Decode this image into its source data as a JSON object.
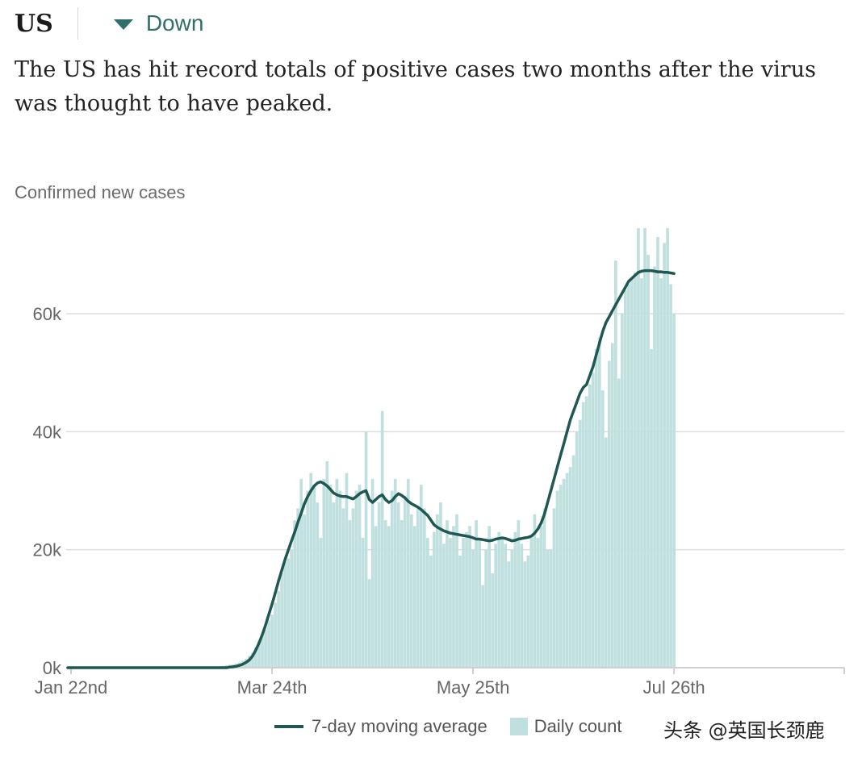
{
  "header": {
    "country": "US",
    "trend_label": "Down",
    "trend_icon": "triangle-down-icon",
    "headline": "The US has hit record totals of positive cases two months after the virus was thought to have peaked."
  },
  "watermark": "头条 @英国长颈鹿",
  "colors": {
    "bars": "#bfe0de",
    "line": "#1f5752",
    "trend": "#2f6f6a",
    "grid": "#dddddd"
  },
  "chart_data": {
    "type": "bar",
    "title": "",
    "ylabel": "Confirmed new cases",
    "xlabel": "",
    "ylim": [
      0,
      75000
    ],
    "x_range": [
      "2020-01-21",
      "2020-09-17"
    ],
    "start_date": "2020-01-21",
    "yticks": [
      {
        "value": 0,
        "label": "0k"
      },
      {
        "value": 20000,
        "label": "20k"
      },
      {
        "value": 40000,
        "label": "40k"
      },
      {
        "value": 60000,
        "label": "60k"
      }
    ],
    "xticks": [
      {
        "day": 1,
        "label": "Jan 22nd"
      },
      {
        "day": 63,
        "label": "Mar 24th"
      },
      {
        "day": 125,
        "label": "May 25th"
      },
      {
        "day": 187,
        "label": "Jul 26th"
      }
    ],
    "legend": [
      "7-day moving average",
      "Daily count"
    ],
    "series": [
      {
        "name": "Daily count",
        "type": "bar",
        "values": [
          1,
          0,
          1,
          0,
          2,
          0,
          1,
          0,
          0,
          1,
          2,
          1,
          0,
          0,
          1,
          0,
          0,
          0,
          0,
          0,
          0,
          0,
          0,
          0,
          0,
          0,
          0,
          0,
          0,
          0,
          18,
          0,
          0,
          10,
          5,
          2,
          10,
          12,
          24,
          15,
          20,
          40,
          40,
          60,
          90,
          120,
          180,
          240,
          300,
          420,
          500,
          550,
          700,
          900,
          1200,
          1500,
          2000,
          2500,
          3500,
          4500,
          5500,
          6500,
          8000,
          9000,
          11000,
          13000,
          16000,
          18000,
          18500,
          20000,
          25000,
          27000,
          32000,
          26000,
          30000,
          33000,
          31000,
          28000,
          22000,
          32000,
          35000,
          31000,
          28000,
          32000,
          30000,
          27000,
          33000,
          25000,
          27000,
          30000,
          31000,
          22000,
          40000,
          15000,
          32000,
          24000,
          28000,
          43500,
          25000,
          24000,
          30000,
          32000,
          28000,
          25000,
          29000,
          32000,
          26000,
          24000,
          27000,
          31000,
          27000,
          22000,
          19000,
          23000,
          26000,
          28000,
          21000,
          25000,
          22000,
          24000,
          26000,
          19000,
          22000,
          23000,
          24000,
          20000,
          25000,
          22000,
          14000,
          20000,
          24000,
          16000,
          21000,
          23000,
          22000,
          21000,
          18000,
          20000,
          23000,
          25000,
          21000,
          18000,
          19000,
          22000,
          26000,
          22000,
          24000,
          27000,
          20000,
          20000,
          27000,
          30000,
          31000,
          32000,
          33000,
          34000,
          36000,
          40000,
          42000,
          45000,
          46000,
          48000,
          50000,
          54000,
          56000,
          47000,
          39000,
          52000,
          55000,
          69000,
          49000,
          60000,
          64000,
          65000,
          66000,
          67000,
          74500,
          66000,
          74500,
          70000,
          54000,
          68000,
          73000,
          66000,
          72000,
          74500,
          65000,
          60000
        ]
      },
      {
        "name": "7-day moving average",
        "type": "line",
        "values": [
          0,
          0,
          0,
          0,
          0,
          0,
          0,
          0,
          0,
          0,
          0,
          0,
          0,
          0,
          0,
          0,
          0,
          0,
          0,
          0,
          0,
          0,
          0,
          0,
          0,
          0,
          0,
          0,
          0,
          0,
          0,
          0,
          0,
          0,
          0,
          0,
          0,
          0,
          0,
          0,
          0,
          0,
          0,
          0,
          0,
          0,
          0,
          0,
          0,
          0,
          100,
          150,
          250,
          400,
          600,
          900,
          1300,
          2000,
          3000,
          4200,
          5600,
          7200,
          9000,
          10800,
          12700,
          14700,
          16500,
          18300,
          19900,
          21500,
          23000,
          24700,
          26200,
          27800,
          29000,
          30000,
          30800,
          31300,
          31500,
          31200,
          30800,
          30200,
          29600,
          29300,
          29100,
          29000,
          29000,
          28800,
          28600,
          29000,
          29500,
          29800,
          30000,
          28500,
          28000,
          28500,
          29000,
          29300,
          28500,
          28000,
          28300,
          29000,
          29500,
          29200,
          28800,
          28200,
          27800,
          27500,
          27200,
          26800,
          26300,
          25800,
          25000,
          24200,
          23800,
          23500,
          23200,
          23000,
          22800,
          22700,
          22600,
          22500,
          22400,
          22300,
          22200,
          22000,
          21800,
          21800,
          21700,
          21600,
          21500,
          21600,
          21800,
          21900,
          22000,
          21900,
          21700,
          21500,
          21600,
          21800,
          21900,
          22000,
          22100,
          22300,
          22800,
          23500,
          24500,
          26000,
          28000,
          30000,
          32000,
          34000,
          36000,
          38000,
          40000,
          42000,
          43500,
          45000,
          46500,
          47500,
          48000,
          49500,
          51000,
          53000,
          55000,
          57000,
          58500,
          59500,
          60500,
          61500,
          62500,
          63500,
          64500,
          65500,
          66000,
          66500,
          67000,
          67200,
          67300,
          67300,
          67300,
          67200,
          67100,
          67100,
          67000,
          67000,
          66900,
          66800
        ]
      }
    ]
  }
}
